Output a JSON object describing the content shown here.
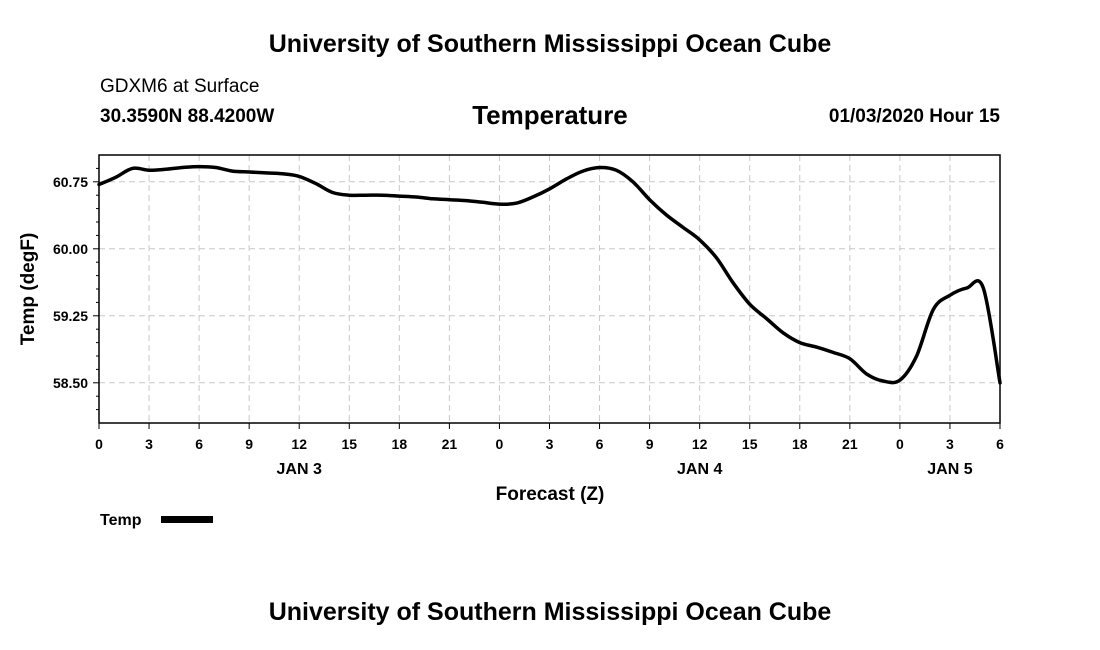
{
  "header": {
    "title": "University of Southern Mississippi Ocean Cube",
    "station": "GDXM6 at Surface",
    "coords": "30.3590N 88.4200W",
    "datetime": "01/03/2020 Hour 15"
  },
  "footer": {
    "title": "University of Southern Mississippi Ocean Cube"
  },
  "chart_data": {
    "type": "line",
    "title": "Temperature",
    "xlabel": "Forecast (Z)",
    "ylabel": "Temp (degF)",
    "ylim": [
      58.05,
      61.05
    ],
    "xlim": [
      0,
      54
    ],
    "grid": true,
    "y_ticks": [
      {
        "value": 58.5,
        "label": "58.50"
      },
      {
        "value": 59.25,
        "label": "59.25"
      },
      {
        "value": 60.0,
        "label": "60.00"
      },
      {
        "value": 60.75,
        "label": "60.75"
      }
    ],
    "y_minor_ticks": [
      58.2,
      58.35,
      58.65,
      58.8,
      58.95,
      59.1,
      59.4,
      59.55,
      59.7,
      59.85,
      60.15,
      60.3,
      60.45,
      60.6,
      60.9
    ],
    "x_ticks": [
      {
        "value": 0,
        "label": "0"
      },
      {
        "value": 3,
        "label": "3"
      },
      {
        "value": 6,
        "label": "6"
      },
      {
        "value": 9,
        "label": "9"
      },
      {
        "value": 12,
        "label": "12"
      },
      {
        "value": 15,
        "label": "15"
      },
      {
        "value": 18,
        "label": "18"
      },
      {
        "value": 21,
        "label": "21"
      },
      {
        "value": 24,
        "label": "0"
      },
      {
        "value": 27,
        "label": "3"
      },
      {
        "value": 30,
        "label": "6"
      },
      {
        "value": 33,
        "label": "9"
      },
      {
        "value": 36,
        "label": "12"
      },
      {
        "value": 39,
        "label": "15"
      },
      {
        "value": 42,
        "label": "18"
      },
      {
        "value": 45,
        "label": "21"
      },
      {
        "value": 48,
        "label": "0"
      },
      {
        "value": 51,
        "label": "3"
      },
      {
        "value": 54,
        "label": "6"
      }
    ],
    "day_labels": [
      {
        "value": 12,
        "label": "JAN 3"
      },
      {
        "value": 36,
        "label": "JAN 4"
      },
      {
        "value": 51,
        "label": "JAN 5"
      }
    ],
    "series": [
      {
        "name": "Temp",
        "color": "#000000",
        "x": [
          0,
          1,
          2,
          3,
          4,
          5,
          6,
          7,
          8,
          9,
          10,
          11,
          12,
          13,
          14,
          15,
          16,
          17,
          18,
          19,
          20,
          21,
          22,
          23,
          24,
          25,
          26,
          27,
          28,
          29,
          30,
          31,
          32,
          33,
          34,
          35,
          36,
          37,
          38,
          39,
          40,
          41,
          42,
          43,
          44,
          45,
          46,
          47,
          48,
          49,
          50,
          51,
          52,
          53,
          54
        ],
        "values": [
          60.72,
          60.8,
          60.9,
          60.88,
          60.89,
          60.91,
          60.92,
          60.91,
          60.87,
          60.86,
          60.85,
          60.84,
          60.81,
          60.73,
          60.63,
          60.6,
          60.6,
          60.6,
          60.59,
          60.58,
          60.56,
          60.55,
          60.54,
          60.52,
          60.5,
          60.51,
          60.58,
          60.67,
          60.78,
          60.87,
          60.91,
          60.88,
          60.75,
          60.55,
          60.38,
          60.24,
          60.1,
          59.9,
          59.62,
          59.38,
          59.22,
          59.06,
          58.95,
          58.9,
          58.84,
          58.77,
          58.6,
          58.52,
          58.53,
          58.8,
          59.32,
          59.48,
          59.56,
          59.56,
          58.5
        ]
      }
    ],
    "legend": {
      "position": "bottom-left",
      "entries": [
        "Temp"
      ]
    }
  }
}
